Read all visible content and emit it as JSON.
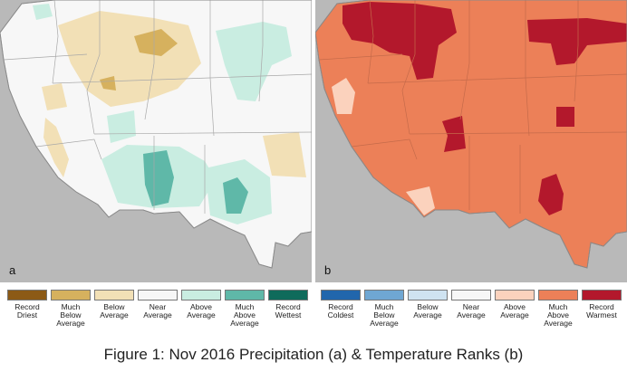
{
  "panels": {
    "a": {
      "letter": "a"
    },
    "b": {
      "letter": "b"
    }
  },
  "legend_a": [
    {
      "label": "Record\nDriest",
      "color": "#8c5a16"
    },
    {
      "label": "Much\nBelow\nAverage",
      "color": "#d6b15e"
    },
    {
      "label": "Below\nAverage",
      "color": "#f2e0b6"
    },
    {
      "label": "Near\nAverage",
      "color": "#f7f7f7"
    },
    {
      "label": "Above\nAverage",
      "color": "#c9ede1"
    },
    {
      "label": "Much\nAbove\nAverage",
      "color": "#5fb8a8"
    },
    {
      "label": "Record\nWettest",
      "color": "#0f6b5b"
    }
  ],
  "legend_b": [
    {
      "label": "Record\nColdest",
      "color": "#2166ac"
    },
    {
      "label": "Much\nBelow\nAverage",
      "color": "#6fa7d3"
    },
    {
      "label": "Below\nAverage",
      "color": "#cfe3f1"
    },
    {
      "label": "Near\nAverage",
      "color": "#f7f7f7"
    },
    {
      "label": "Above\nAverage",
      "color": "#fbd2bd"
    },
    {
      "label": "Much\nAbove\nAverage",
      "color": "#ec8058"
    },
    {
      "label": "Record\nWarmest",
      "color": "#b3182c"
    }
  ],
  "caption": "Figure 1: Nov 2016 Precipitation (a) & Temperature Ranks (b)"
}
